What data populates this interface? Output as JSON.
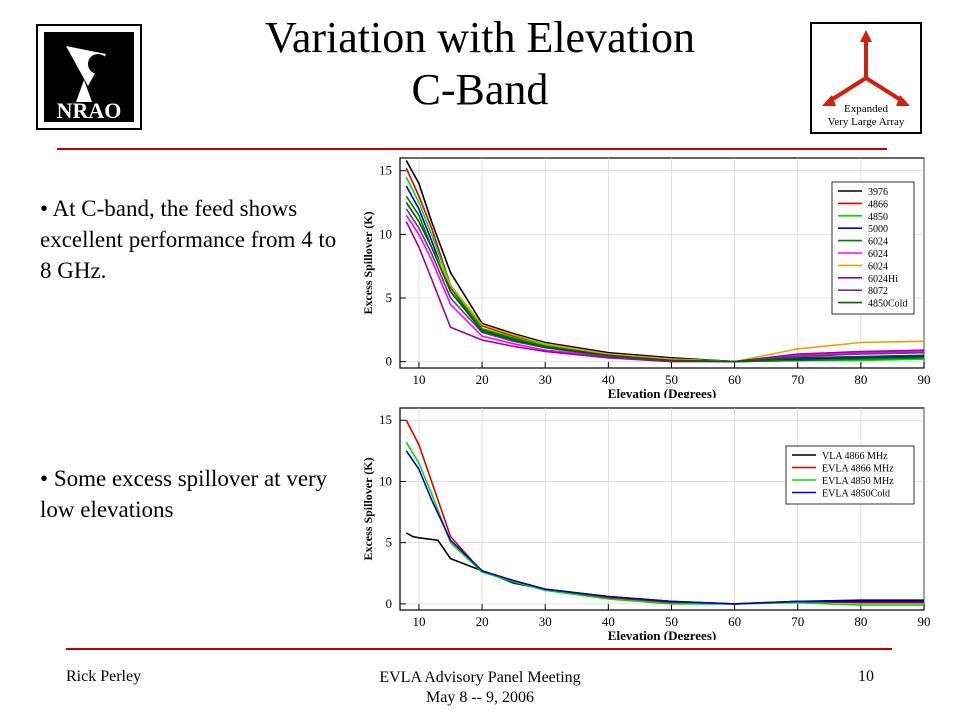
{
  "slide": {
    "title_line1": "Variation with Elevation",
    "title_line2": "C-Band",
    "bullets": [
      "At C-band, the feed shows excellent performance from 4 to 8 GHz.",
      "Some excess spillover at very low elevations"
    ],
    "footer": {
      "left": "Rick Perley",
      "center_line1": "EVLA Advisory Panel Meeting",
      "center_line2": "May 8 -- 9, 2006",
      "page": "10"
    },
    "logos": {
      "nrao_text": "NRAO",
      "evla_line1": "Expanded",
      "evla_line2": "Very Large Array"
    }
  },
  "chart_data": [
    {
      "type": "line",
      "xlabel": "Elevation (Degrees)",
      "ylabel": "Excess Spillover (K)",
      "xlim": [
        7,
        90
      ],
      "ylim": [
        -0.5,
        16
      ],
      "xticks": [
        10,
        20,
        30,
        40,
        50,
        60,
        70,
        80,
        90
      ],
      "yticks": [
        0,
        5,
        10,
        15
      ],
      "legend_position": "top-right",
      "series": [
        {
          "name": "3976",
          "color": "#000000",
          "x": [
            8,
            10,
            12,
            15,
            20,
            25,
            30,
            40,
            50,
            60,
            70,
            80,
            90
          ],
          "y": [
            15.8,
            14,
            11,
            7,
            3,
            2.2,
            1.5,
            0.7,
            0.3,
            0,
            0.2,
            0.3,
            0.4
          ]
        },
        {
          "name": "4866",
          "color": "#e00000",
          "x": [
            8,
            10,
            12,
            15,
            20,
            25,
            30,
            40,
            50,
            60,
            70,
            80,
            90
          ],
          "y": [
            15.2,
            13,
            10.5,
            6,
            2.8,
            2,
            1.4,
            0.6,
            0.2,
            0,
            0.1,
            0.2,
            0.3
          ]
        },
        {
          "name": "4850",
          "color": "#00e000",
          "x": [
            8,
            10,
            12,
            15,
            20,
            25,
            30,
            40,
            50,
            60,
            70,
            80,
            90
          ],
          "y": [
            14.5,
            12.5,
            10,
            6,
            2.6,
            1.9,
            1.3,
            0.6,
            0.2,
            0,
            0.1,
            0.1,
            0.2
          ]
        },
        {
          "name": "5000",
          "color": "#0000d0",
          "x": [
            8,
            10,
            12,
            15,
            20,
            25,
            30,
            40,
            50,
            60,
            70,
            80,
            90
          ],
          "y": [
            13.8,
            12,
            9.5,
            5.5,
            2.5,
            1.8,
            1.2,
            0.5,
            0.2,
            0,
            0.2,
            0.3,
            0.4
          ]
        },
        {
          "name": "6024",
          "color": "#008000",
          "x": [
            8,
            10,
            12,
            15,
            20,
            25,
            30,
            40,
            50,
            60,
            70,
            80,
            90
          ],
          "y": [
            13,
            11.5,
            9,
            5.8,
            2.5,
            1.8,
            1.2,
            0.5,
            0.1,
            0,
            0.1,
            0.2,
            0.3
          ]
        },
        {
          "name": "6024",
          "color": "#ff00ff",
          "x": [
            8,
            10,
            12,
            15,
            20,
            25,
            30,
            40,
            50,
            60,
            70,
            80,
            90
          ],
          "y": [
            11.5,
            10,
            8,
            4.5,
            2,
            1.4,
            0.9,
            0.4,
            0.1,
            0,
            0.5,
            0.7,
            0.8
          ]
        },
        {
          "name": "6024",
          "color": "#f0a000",
          "x": [
            8,
            10,
            12,
            15,
            20,
            25,
            30,
            40,
            50,
            60,
            70,
            80,
            90
          ],
          "y": [
            12.5,
            11,
            9,
            6,
            2.9,
            2.1,
            1.4,
            0.6,
            0.2,
            0,
            1,
            1.5,
            1.6
          ]
        },
        {
          "name": "6024Hi",
          "color": "#a000a0",
          "x": [
            8,
            10,
            12,
            15,
            20,
            25,
            30,
            40,
            50,
            60,
            70,
            80,
            90
          ],
          "y": [
            11,
            9,
            6.5,
            2.7,
            1.7,
            1.2,
            0.8,
            0.3,
            0,
            0,
            0.6,
            0.8,
            0.9
          ]
        },
        {
          "name": "8072",
          "color": "#7030a0",
          "x": [
            8,
            10,
            12,
            15,
            20,
            25,
            30,
            40,
            50,
            60,
            70,
            80,
            90
          ],
          "y": [
            12,
            10.5,
            8.5,
            5,
            2.3,
            1.6,
            1.1,
            0.4,
            0.1,
            0,
            0.4,
            0.6,
            0.7
          ]
        },
        {
          "name": "4850Cold",
          "color": "#006000",
          "x": [
            8,
            10,
            12,
            15,
            20,
            25,
            30,
            40,
            50,
            60,
            70,
            80,
            90
          ],
          "y": [
            12.5,
            11,
            9,
            5.5,
            2.4,
            1.7,
            1.1,
            0.5,
            0.1,
            0,
            0.3,
            0.4,
            0.5
          ]
        }
      ]
    },
    {
      "type": "line",
      "xlabel": "Elevation (Degrees)",
      "ylabel": "Excess Spillover (K)",
      "xlim": [
        7,
        90
      ],
      "ylim": [
        -0.5,
        16
      ],
      "xticks": [
        10,
        20,
        30,
        40,
        50,
        60,
        70,
        80,
        90
      ],
      "yticks": [
        0,
        5,
        10,
        15
      ],
      "legend_position": "top-right",
      "series": [
        {
          "name": "VLA 4866 MHz",
          "color": "#000000",
          "x": [
            8,
            9,
            10,
            13,
            15,
            20,
            25,
            30,
            40,
            50,
            60,
            70,
            80,
            90
          ],
          "y": [
            5.8,
            5.5,
            5.4,
            5.2,
            3.7,
            2.7,
            1.7,
            1.2,
            0.6,
            0.2,
            0,
            0.2,
            0.3,
            0.3
          ]
        },
        {
          "name": "EVLA 4866 MHz",
          "color": "#e00000",
          "x": [
            8,
            10,
            12,
            15,
            20,
            25,
            30,
            40,
            50,
            60,
            70,
            80,
            90
          ],
          "y": [
            15,
            13,
            10,
            5.5,
            2.6,
            1.9,
            1.2,
            0.5,
            0.1,
            0,
            0.2,
            0.1,
            0.1
          ]
        },
        {
          "name": "EVLA 4850 MHz",
          "color": "#00e000",
          "x": [
            8,
            10,
            12,
            15,
            20,
            25,
            30,
            40,
            50,
            60,
            70,
            80,
            90
          ],
          "y": [
            13.2,
            11.5,
            9,
            5,
            2.6,
            1.8,
            1.1,
            0.4,
            0,
            0,
            0.1,
            -0.1,
            -0.1
          ]
        },
        {
          "name": "EVLA 4850Cold",
          "color": "#0000d0",
          "x": [
            8,
            10,
            12,
            15,
            20,
            25,
            30,
            40,
            50,
            60,
            70,
            80,
            90
          ],
          "y": [
            12.5,
            11,
            8.5,
            5.2,
            2.7,
            1.9,
            1.2,
            0.6,
            0.2,
            0,
            0.2,
            0.2,
            0.2
          ]
        }
      ]
    }
  ]
}
